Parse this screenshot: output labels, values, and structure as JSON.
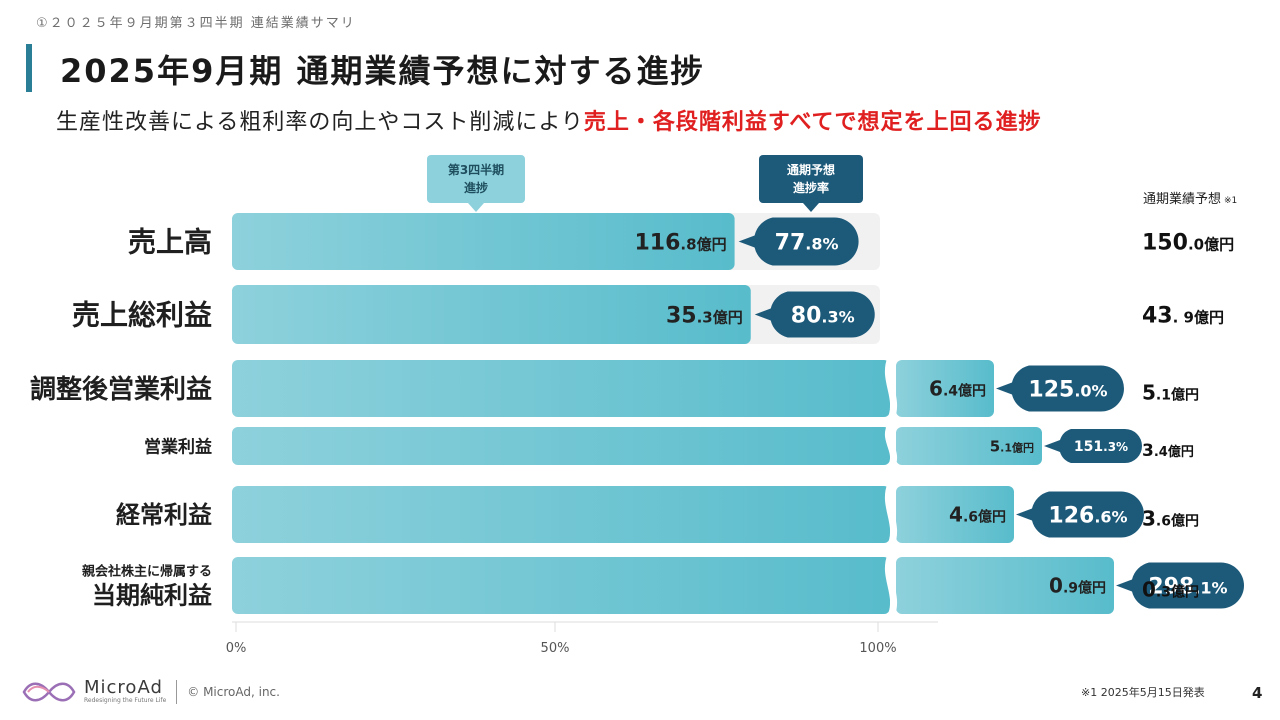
{
  "header": {
    "breadcrumb": "①２０２５年９月期第３四半期 連結業績サマリ",
    "title": "2025年9月期 通期業績予想に対する進捗",
    "subtitle_normal": "生産性改善による粗利率の向上やコスト削減により",
    "subtitle_accent": "売上・各段階利益すべてで想定を上回る進捗"
  },
  "colors": {
    "bar_light": "#8dd1dc",
    "bar_dark": "#58bccb",
    "badge": "#1d5a7a",
    "track": "#f1f1f1",
    "accent": "#e02020"
  },
  "legend": {
    "progress_label_line1": "第3四半期",
    "progress_label_line2": "進捗",
    "rate_label_line1": "通期予想",
    "rate_label_line2": "進捗率",
    "forecast_header": "通期業績予想",
    "forecast_note": "※1"
  },
  "chart_data": {
    "type": "bar",
    "orientation": "horizontal",
    "x_axis": {
      "ticks": [
        "0%",
        "50%",
        "100%"
      ],
      "range_pct": [
        0,
        100
      ]
    },
    "series": [
      {
        "name": "第3四半期 進捗",
        "unit": "億円"
      },
      {
        "name": "通期予想 進捗率",
        "unit": "%"
      },
      {
        "name": "通期業績予想",
        "unit": "億円"
      }
    ],
    "rows": [
      {
        "label_pre": "",
        "label": "売上高",
        "q3_int": "116",
        "q3_dec": ".8",
        "unit": "億円",
        "pct_int": "77",
        "pct_dec": ".8%",
        "progress": 77.8,
        "forecast_int": "150",
        "forecast_dec": ".0",
        "broken": false
      },
      {
        "label_pre": "",
        "label": "売上総利益",
        "q3_int": "35",
        "q3_dec": ".3",
        "unit": "億円",
        "pct_int": "80",
        "pct_dec": ".3%",
        "progress": 80.3,
        "forecast_int": "43",
        "forecast_dec": ". 9",
        "broken": false
      },
      {
        "label_pre": "",
        "label": "調整後営業利益",
        "q3_int": "6",
        "q3_dec": ".4",
        "unit": "億円",
        "pct_int": "125",
        "pct_dec": ".0%",
        "progress": 125.0,
        "forecast_int": "5",
        "forecast_dec": ".1",
        "broken": true
      },
      {
        "label_pre": "",
        "label": "営業利益",
        "q3_int": "5",
        "q3_dec": ".1",
        "unit": "億円",
        "pct_int": "151",
        "pct_dec": ".3%",
        "progress": 151.3,
        "forecast_int": "3",
        "forecast_dec": ".4",
        "broken": true
      },
      {
        "label_pre": "",
        "label": "経常利益",
        "q3_int": "4",
        "q3_dec": ".6",
        "unit": "億円",
        "pct_int": "126",
        "pct_dec": ".6%",
        "progress": 126.6,
        "forecast_int": "3",
        "forecast_dec": ".6",
        "broken": true
      },
      {
        "label_pre": "親会社株主に帰属する",
        "label": "当期純利益",
        "q3_int": "0",
        "q3_dec": ".9",
        "unit": "億円",
        "pct_int": "298",
        "pct_dec": ".1%",
        "progress": 298.1,
        "forecast_int": "0",
        "forecast_dec": ".3",
        "broken": true
      }
    ]
  },
  "footer": {
    "logo_name": "MicroAd",
    "logo_tagline": "Redesigning the Future Life",
    "copyright": "© MicroAd, inc.",
    "footnote": "※1 2025年5月15日発表",
    "page": "4"
  }
}
